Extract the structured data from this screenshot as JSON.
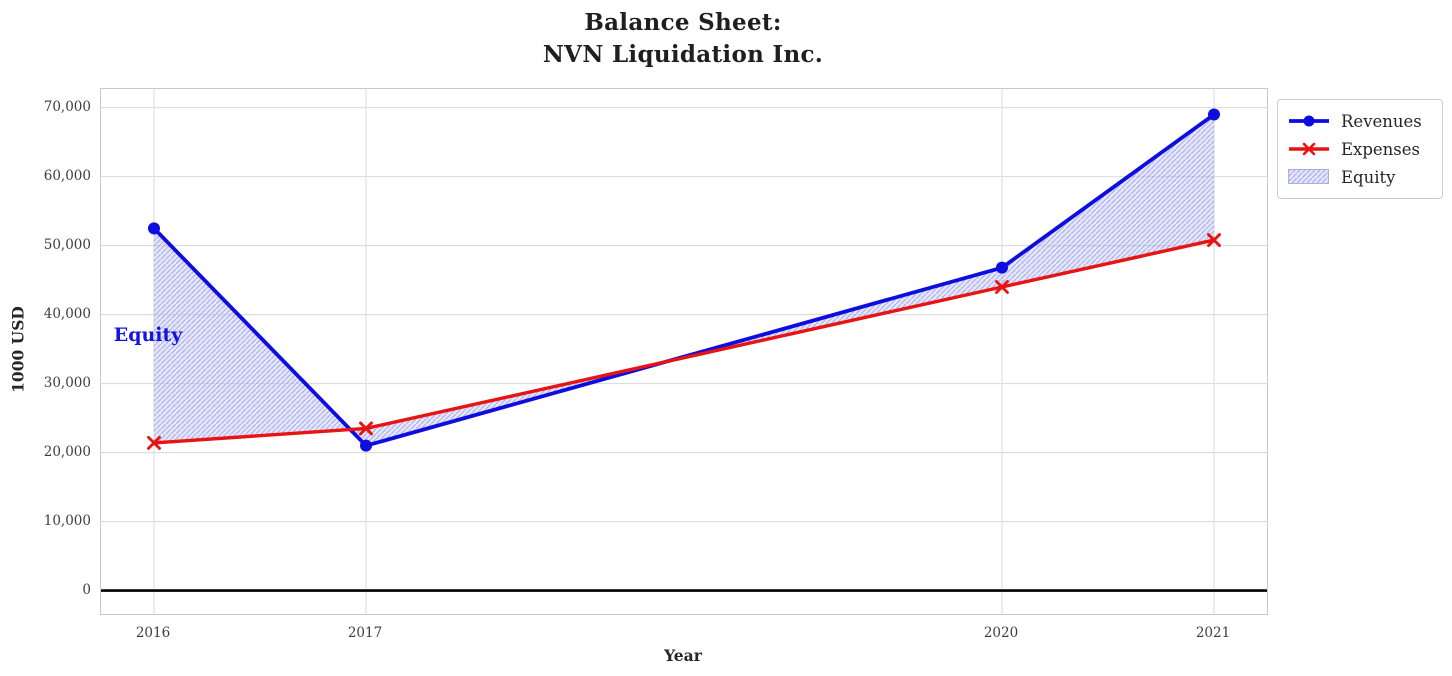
{
  "chart_data": {
    "type": "line",
    "title": "Balance Sheet:\nNVN Liquidation Inc.",
    "xlabel": "Year",
    "ylabel": "1000 USD",
    "x": [
      2016,
      2017,
      2020,
      2021
    ],
    "series": [
      {
        "name": "Revenues",
        "values": [
          52500,
          21000,
          46800,
          69000
        ],
        "color": "#0d0de0",
        "marker": "circle",
        "linewidth": 3.8
      },
      {
        "name": "Expenses",
        "values": [
          21400,
          23500,
          44000,
          50800
        ],
        "color": "#e81313",
        "marker": "x",
        "linewidth": 3.4
      }
    ],
    "fill_between": {
      "label": "Equity",
      "between": [
        "Revenues",
        "Expenses"
      ],
      "facecolor": "#c3c5f0",
      "face_opacity": 0.42,
      "hatch": "///",
      "hatchcolor": "#7a7fe0",
      "hatch_opacity": 0.5
    },
    "annotation": {
      "text": "Equity",
      "x": 2015.81,
      "y": 37000,
      "color": "#1414dd"
    },
    "xticks": [
      2016,
      2017,
      2020,
      2021
    ],
    "xtick_labels": [
      "2016",
      "2017",
      "2020",
      "2021"
    ],
    "yticks": [
      0,
      10000,
      20000,
      30000,
      40000,
      50000,
      60000,
      70000
    ],
    "ytick_labels": [
      "0",
      "10,000",
      "20,000",
      "30,000",
      "40,000",
      "50,000",
      "60,000",
      "70,000"
    ],
    "xlim": [
      2015.75,
      2021.25
    ],
    "ylim": [
      -3400,
      72700
    ],
    "grid": true,
    "grid_color": "#dcdcdc",
    "zero_line": true,
    "zero_line_color": "#000000",
    "legend_position": "upper-right-outside",
    "legend": [
      {
        "label": "Revenues",
        "swatch": "line-circle"
      },
      {
        "label": "Expenses",
        "swatch": "line-x"
      },
      {
        "label": "Equity",
        "swatch": "hatched-patch"
      }
    ]
  }
}
